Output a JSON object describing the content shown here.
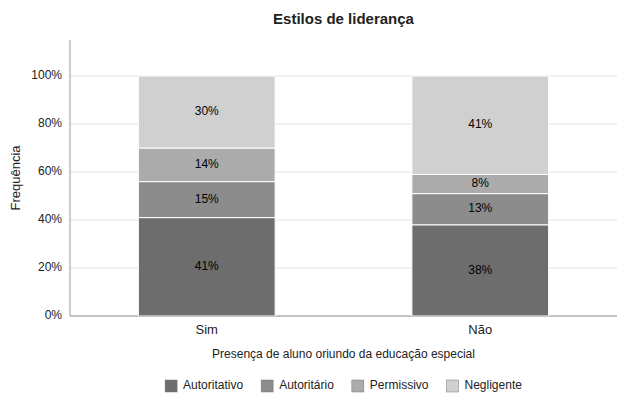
{
  "chart_data": {
    "type": "bar",
    "stacked": true,
    "title": "Estilos de liderança",
    "xlabel": "Presença de aluno oriundo da educação especial",
    "ylabel": "Frequência",
    "categories": [
      "Sim",
      "Não"
    ],
    "series": [
      {
        "name": "Autoritativo",
        "color": "#6d6d6d",
        "values": [
          41,
          38
        ],
        "value_labels": [
          "41%",
          "38%"
        ]
      },
      {
        "name": "Autoritário",
        "color": "#8c8c8c",
        "values": [
          15,
          13
        ],
        "value_labels": [
          "15%",
          "13%"
        ]
      },
      {
        "name": "Permissivo",
        "color": "#ababab",
        "values": [
          14,
          8
        ],
        "value_labels": [
          "14%",
          "8%"
        ]
      },
      {
        "name": "Negligente",
        "color": "#d0d0d0",
        "values": [
          30,
          41
        ],
        "value_labels": [
          "30%",
          "41%"
        ]
      }
    ],
    "ylim": [
      0,
      115
    ],
    "yticks": [
      {
        "value": 0,
        "label": "0%"
      },
      {
        "value": 20,
        "label": "20%"
      },
      {
        "value": 40,
        "label": "40%"
      },
      {
        "value": 60,
        "label": "60%"
      },
      {
        "value": 80,
        "label": "80%"
      },
      {
        "value": 100,
        "label": "100%"
      }
    ],
    "grid": true,
    "data_labels": true,
    "legend": "bottom"
  }
}
